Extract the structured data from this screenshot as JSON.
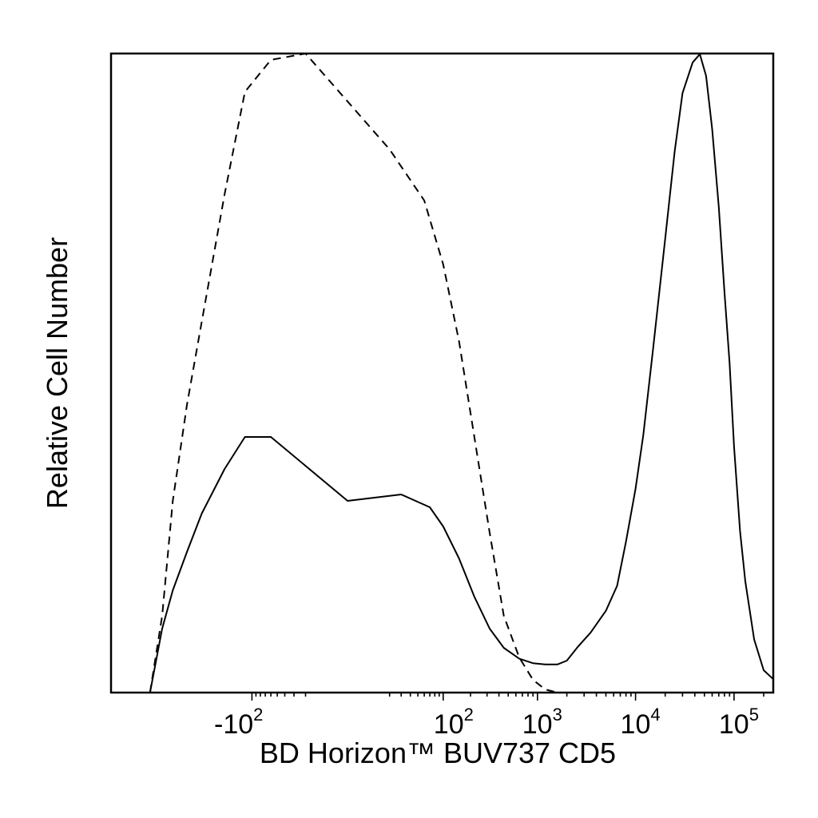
{
  "chart_data": {
    "type": "line",
    "title": "",
    "xlabel": "BD Horizon™ BUV737 CD5",
    "ylabel": "Relative Cell Number",
    "x_scale": "biexponential",
    "xlim": [
      -3000,
      250000
    ],
    "ylim": [
      0,
      100
    ],
    "grid": false,
    "legend": "none",
    "x_ticks": [
      {
        "value": -100,
        "base": "-10",
        "exp": "2"
      },
      {
        "value": 100,
        "base": "10",
        "exp": "2"
      },
      {
        "value": 1000,
        "base": "10",
        "exp": "3"
      },
      {
        "value": 10000,
        "base": "10",
        "exp": "4"
      },
      {
        "value": 100000,
        "base": "10",
        "exp": "5"
      }
    ],
    "series": [
      {
        "style": "solid",
        "color": "#000000",
        "x": [
          -1200,
          -900,
          -700,
          -500,
          -350,
          -200,
          -120,
          -60,
          0,
          30,
          70,
          100,
          150,
          220,
          320,
          450,
          650,
          900,
          1200,
          1600,
          2000,
          2600,
          3500,
          5000,
          6500,
          8000,
          10000,
          12000,
          15000,
          20000,
          25000,
          30000,
          38000,
          45000,
          52000,
          60000,
          70000,
          80000,
          90000,
          100000,
          115000,
          130000,
          160000,
          200000,
          250000
        ],
        "y": [
          0,
          10,
          16,
          22,
          28,
          35,
          40,
          40,
          30,
          31,
          29,
          26,
          21,
          15,
          10,
          7,
          5.3,
          4.6,
          4.4,
          4.4,
          5.0,
          7.2,
          9.4,
          12.8,
          16.7,
          23.6,
          31.9,
          40.3,
          53.5,
          71.0,
          84.7,
          93.8,
          98.6,
          99.9,
          96.5,
          88.2,
          76.0,
          62.7,
          51.6,
          38.5,
          25.3,
          17.4,
          8.3,
          3.5,
          2.1
        ]
      },
      {
        "style": "dashed",
        "color": "#000000",
        "x": [
          -1200,
          -900,
          -700,
          -500,
          -350,
          -200,
          -120,
          -60,
          -20,
          20,
          60,
          100,
          150,
          220,
          320,
          450,
          650,
          900,
          1200,
          1600
        ],
        "y": [
          0,
          12,
          30,
          45,
          58,
          78,
          94,
          99,
          100,
          85,
          77,
          67,
          55,
          40,
          25,
          12,
          5.5,
          2.0,
          0.5,
          0
        ]
      }
    ]
  }
}
